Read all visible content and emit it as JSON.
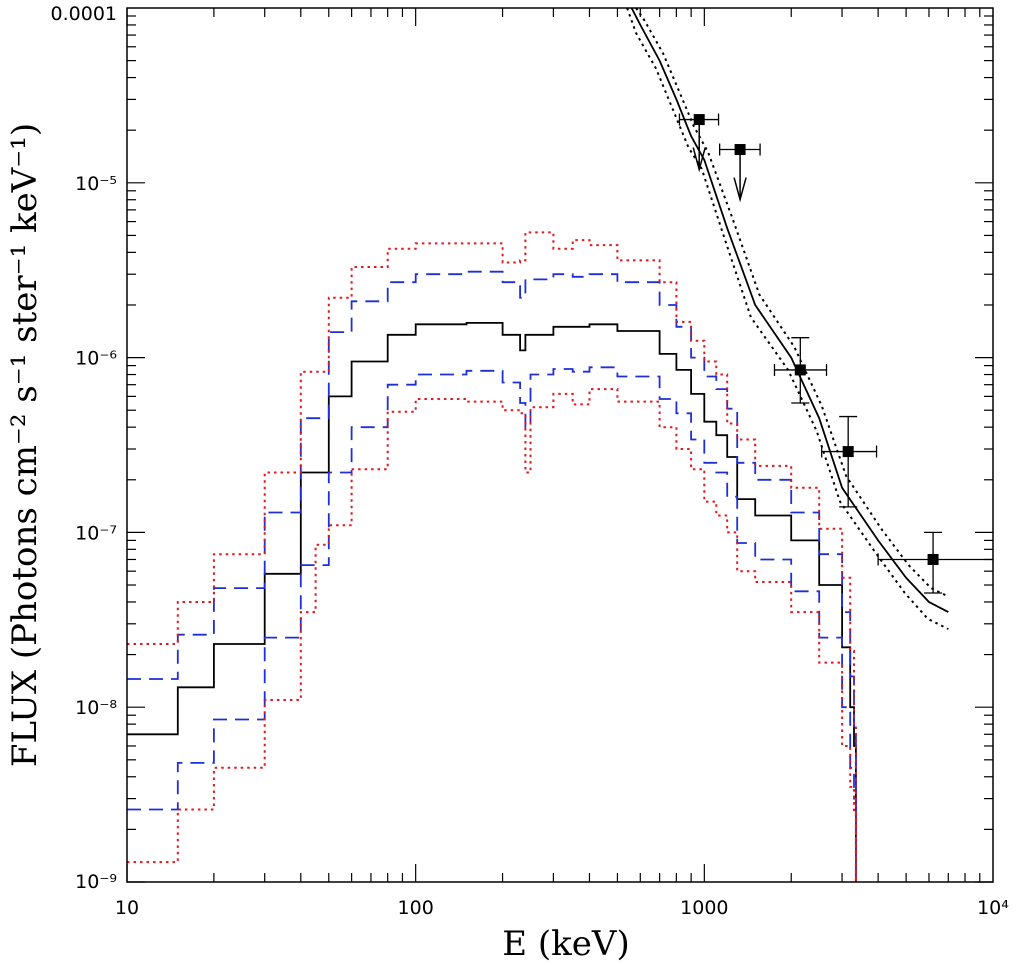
{
  "chart_data": {
    "type": "line",
    "xscale": "log",
    "yscale": "log",
    "xlim": [
      10,
      10000
    ],
    "ylim": [
      1e-09,
      0.0001
    ],
    "xlabel": "E (keV)",
    "ylabel": "FLUX (Photons cm⁻² s⁻¹ ster⁻¹ keV⁻¹)",
    "x_ticks": [
      {
        "value": 10,
        "label": "10"
      },
      {
        "value": 100,
        "label": "100"
      },
      {
        "value": 1000,
        "label": "1000"
      },
      {
        "value": 10000,
        "label": "10⁴"
      }
    ],
    "y_ticks": [
      {
        "value": 1e-09,
        "label": "10⁻⁹"
      },
      {
        "value": 1e-08,
        "label": "10⁻⁸"
      },
      {
        "value": 1e-07,
        "label": "10⁻⁷"
      },
      {
        "value": 1e-06,
        "label": "10⁻⁶"
      },
      {
        "value": 1e-05,
        "label": "10⁻⁵"
      },
      {
        "value": 0.0001,
        "label": "0.0001"
      }
    ],
    "series": [
      {
        "name": "model-central",
        "style": "solid",
        "color": "#000000",
        "step": true,
        "x": [
          10,
          15,
          20,
          30,
          40,
          50,
          60,
          80,
          100,
          150,
          200,
          230,
          240,
          300,
          350,
          400,
          500,
          700,
          800,
          900,
          1000,
          1100,
          1200,
          1300,
          1500,
          2000,
          2500,
          3000,
          3200,
          3300,
          3350
        ],
        "y": [
          7e-09,
          1.3e-08,
          2.3e-08,
          5.8e-08,
          2.2e-07,
          6e-07,
          9.5e-07,
          1.35e-06,
          1.55e-06,
          1.58e-06,
          1.35e-06,
          1.1e-06,
          1.35e-06,
          1.5e-06,
          1.5e-06,
          1.55e-06,
          1.42e-06,
          1.05e-06,
          8.5e-07,
          6.2e-07,
          4.3e-07,
          3.6e-07,
          2.7e-07,
          1.55e-07,
          1.25e-07,
          9e-08,
          5e-08,
          2.2e-08,
          1e-08,
          6e-09,
          1e-09
        ]
      },
      {
        "name": "model-upper-1",
        "style": "dashed",
        "color": "#1f2fd6",
        "step": true,
        "x": [
          10,
          15,
          20,
          30,
          40,
          50,
          60,
          80,
          100,
          150,
          200,
          230,
          240,
          300,
          350,
          400,
          500,
          700,
          800,
          900,
          1000,
          1100,
          1200,
          1300,
          1500,
          2000,
          2500,
          3000,
          3200,
          3300,
          3350
        ],
        "y": [
          1.45e-08,
          2.6e-08,
          4.8e-08,
          1.3e-07,
          4.5e-07,
          1.4e-06,
          2.1e-06,
          2.7e-06,
          3e-06,
          3.1e-06,
          2.7e-06,
          2.2e-06,
          2.8e-06,
          3e-06,
          2.9e-06,
          3e-06,
          2.7e-06,
          2e-06,
          1.5e-06,
          1e-06,
          7.8e-07,
          6.6e-07,
          5.1e-07,
          2.5e-07,
          2e-07,
          1.3e-07,
          7.5e-08,
          3.5e-08,
          1.5e-08,
          7e-09,
          1e-09
        ]
      },
      {
        "name": "model-lower-1",
        "style": "dashed",
        "color": "#1f2fd6",
        "step": true,
        "x": [
          10,
          15,
          20,
          30,
          40,
          50,
          60,
          80,
          100,
          150,
          200,
          230,
          240,
          250,
          300,
          350,
          400,
          500,
          700,
          800,
          900,
          1000,
          1100,
          1200,
          1300,
          1500,
          2000,
          2500,
          3000,
          3200,
          3300,
          3350
        ],
        "y": [
          2.6e-09,
          4.8e-09,
          8.5e-09,
          2.5e-08,
          6.5e-08,
          2.2e-07,
          4e-07,
          7e-07,
          8e-07,
          8.4e-07,
          7.2e-07,
          5.5e-07,
          4e-07,
          8e-07,
          8.6e-07,
          8.3e-07,
          8.8e-07,
          7.8e-07,
          5.8e-07,
          4.8e-07,
          3.4e-07,
          2.5e-07,
          2.2e-07,
          1.6e-07,
          8.7e-08,
          7e-08,
          4.6e-08,
          2.5e-08,
          1e-08,
          4.5e-09,
          3e-09,
          1e-09
        ]
      },
      {
        "name": "model-upper-2",
        "style": "dotted",
        "color": "#e0191e",
        "step": true,
        "x": [
          10,
          15,
          20,
          30,
          40,
          50,
          60,
          80,
          100,
          150,
          200,
          230,
          240,
          300,
          350,
          400,
          500,
          700,
          800,
          900,
          1000,
          1100,
          1200,
          1300,
          1500,
          2000,
          2500,
          3000,
          3200,
          3300,
          3350
        ],
        "y": [
          2.3e-08,
          4e-08,
          7.5e-08,
          2.2e-07,
          8.3e-07,
          2.2e-06,
          3.3e-06,
          4.2e-06,
          4.5e-06,
          4.5e-06,
          3.5e-06,
          3.6e-06,
          5.2e-06,
          4.2e-06,
          4.7e-06,
          4.4e-06,
          3.6e-06,
          2.7e-06,
          1.6e-06,
          1.25e-06,
          9.5e-07,
          8e-07,
          4.2e-07,
          3.4e-07,
          2.4e-07,
          1.8e-07,
          1.05e-07,
          5.5e-08,
          2.1e-08,
          8e-09,
          1e-09
        ]
      },
      {
        "name": "model-lower-2",
        "style": "dotted",
        "color": "#e0191e",
        "step": true,
        "x": [
          10,
          15,
          20,
          30,
          40,
          45,
          50,
          60,
          80,
          100,
          150,
          200,
          230,
          240,
          250,
          300,
          350,
          400,
          500,
          700,
          800,
          900,
          1000,
          1100,
          1200,
          1300,
          1500,
          2000,
          2500,
          3000,
          3200,
          3300,
          3350
        ],
        "y": [
          1.3e-09,
          2.6e-09,
          4.5e-09,
          1.1e-08,
          3.5e-08,
          8.5e-08,
          1.1e-07,
          2.3e-07,
          4.9e-07,
          5.8e-07,
          5.6e-07,
          5e-07,
          4.8e-07,
          2.2e-07,
          5.2e-07,
          6.2e-07,
          5.4e-07,
          6.6e-07,
          5.6e-07,
          4e-07,
          3e-07,
          2.3e-07,
          1.5e-07,
          1.25e-07,
          1e-07,
          6e-08,
          5.2e-08,
          3.5e-08,
          1.8e-08,
          6e-09,
          3.5e-09,
          2.5e-09,
          1e-09
        ]
      },
      {
        "name": "power-law-fit",
        "style": "solid",
        "color": "#000000",
        "step": false,
        "x": [
          560,
          600,
          700,
          800,
          900,
          1000,
          1200,
          1500,
          2000,
          2500,
          3000,
          4000,
          5000,
          6000,
          7000
        ],
        "y": [
          0.0001,
          8e-05,
          5e-05,
          3e-05,
          1.85e-05,
          1.35e-05,
          5.5e-06,
          2e-06,
          1e-06,
          4.5e-07,
          1.8e-07,
          9e-08,
          5.5e-08,
          4e-08,
          3.5e-08
        ]
      },
      {
        "name": "power-law-fit-upper",
        "style": "dotted",
        "color": "#000000",
        "step": false,
        "x": [
          580,
          620,
          720,
          820,
          920,
          1030,
          1250,
          1550,
          2050,
          2550,
          3100,
          4100,
          5100,
          6100,
          7000
        ],
        "y": [
          0.0001,
          8.5e-05,
          5.5e-05,
          3.3e-05,
          2.1e-05,
          1.5e-05,
          6.3e-06,
          2.3e-06,
          1.15e-06,
          5.3e-07,
          2.1e-07,
          1.05e-07,
          6.5e-08,
          4.8e-08,
          4.3e-08
        ]
      },
      {
        "name": "power-law-fit-lower",
        "style": "dotted",
        "color": "#000000",
        "step": false,
        "x": [
          540,
          580,
          680,
          780,
          880,
          980,
          1180,
          1450,
          1950,
          2450,
          2950,
          3950,
          4950,
          5950,
          7000
        ],
        "y": [
          0.0001,
          7.2e-05,
          4.5e-05,
          2.6e-05,
          1.6e-05,
          1.2e-05,
          4.7e-06,
          1.7e-06,
          8.5e-07,
          3.8e-07,
          1.5e-07,
          7.5e-08,
          4.5e-08,
          3.2e-08,
          2.8e-08
        ]
      }
    ],
    "data_points": [
      {
        "x": 960,
        "y": 2.3e-05,
        "xerr_lo": 820,
        "xerr_hi": 1120,
        "upper_limit": true
      },
      {
        "x": 1330,
        "y": 1.55e-05,
        "xerr_lo": 1130,
        "xerr_hi": 1560,
        "upper_limit": true
      },
      {
        "x": 2150,
        "y": 8.5e-07,
        "xerr_lo": 1750,
        "xerr_hi": 2650,
        "yerr_lo": 5.5e-07,
        "yerr_hi": 1.3e-06,
        "upper_limit": false
      },
      {
        "x": 3150,
        "y": 2.9e-07,
        "xerr_lo": 2550,
        "xerr_hi": 3950,
        "yerr_lo": 1.4e-07,
        "yerr_hi": 4.6e-07,
        "upper_limit": false
      },
      {
        "x": 6200,
        "y": 7e-08,
        "xerr_lo": 4000,
        "xerr_hi": 10000,
        "yerr_lo": 4.5e-08,
        "yerr_hi": 1e-07,
        "upper_limit": false
      }
    ]
  }
}
